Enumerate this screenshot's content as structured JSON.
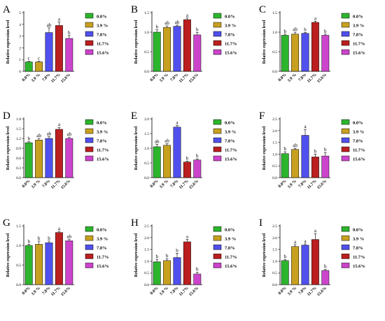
{
  "legend": [
    "0.0%",
    "3.9 %",
    "7.8%",
    "11.7%",
    "15.6%"
  ],
  "colors": {
    "g0": "#2db52d",
    "g1": "#c8a020",
    "g2": "#5050ee",
    "g3": "#bb1f1f",
    "g4": "#cc44cc"
  },
  "chart_data": [
    {
      "type": "bar",
      "panel_label": "A",
      "categories": [
        "0.0%",
        "3.9 %",
        "7.8%",
        "11.7%",
        "15.6%"
      ],
      "values": [
        0.8,
        0.8,
        3.3,
        3.9,
        2.8
      ],
      "errors": [
        0.05,
        0.05,
        0.4,
        0.3,
        0.25
      ],
      "letters": [
        "c",
        "c",
        "ab",
        "a",
        "b"
      ],
      "ylabel": "Relative expression level",
      "ylim": [
        0,
        5
      ],
      "yticks": [
        0,
        1,
        2,
        3,
        4,
        5
      ],
      "tick_labels": [
        "0",
        "1",
        "2",
        "3",
        "4",
        "5"
      ]
    },
    {
      "type": "bar",
      "panel_label": "B",
      "categories": [
        "0.0%",
        "3.9 %",
        "7.8%",
        "11.7%",
        "15.6%"
      ],
      "values": [
        1.0,
        1.12,
        1.15,
        1.32,
        0.93
      ],
      "errors": [
        0.06,
        0.04,
        0.03,
        0.04,
        0.06
      ],
      "letters": [
        "b",
        "ab",
        "ab",
        "a",
        "b"
      ],
      "ylabel": "Relative expression level",
      "ylim": [
        0,
        1.5
      ],
      "yticks": [
        0,
        0.5,
        1.0,
        1.5
      ],
      "tick_labels": [
        "0.0",
        "0.5",
        "1.0",
        "1.5"
      ]
    },
    {
      "type": "bar",
      "panel_label": "C",
      "categories": [
        "0.0%",
        "3.9 %",
        "7.8%",
        "11.7%",
        "15.6%"
      ],
      "values": [
        0.92,
        0.95,
        0.97,
        1.25,
        0.92
      ],
      "errors": [
        0.03,
        0.05,
        0.02,
        0.03,
        0.03
      ],
      "letters": [
        "b",
        "ab",
        "b",
        "a",
        "b"
      ],
      "ylabel": "Relative expression level",
      "ylim": [
        0,
        1.5
      ],
      "yticks": [
        0,
        0.5,
        1.0,
        1.5
      ],
      "tick_labels": [
        "0.0",
        "0.5",
        "1.0",
        "1.5"
      ]
    },
    {
      "type": "bar",
      "panel_label": "D",
      "categories": [
        "0.0%",
        "3.9 %",
        "7.8%",
        "11.7%",
        "15.6%"
      ],
      "values": [
        1.07,
        1.15,
        1.2,
        1.48,
        1.2
      ],
      "errors": [
        0.03,
        0.05,
        0.05,
        0.06,
        0.04
      ],
      "letters": [
        "b",
        "ab",
        "ab",
        "a",
        "ab"
      ],
      "ylabel": "Relative expression level",
      "ylim": [
        0,
        1.8
      ],
      "yticks": [
        0,
        0.3,
        0.6,
        0.9,
        1.2,
        1.5,
        1.8
      ],
      "tick_labels": [
        "0.0",
        "0.3",
        "0.6",
        "0.9",
        "1.2",
        "1.5",
        "1.8"
      ]
    },
    {
      "type": "bar",
      "panel_label": "E",
      "categories": [
        "0.0%",
        "3.9 %",
        "7.8%",
        "11.7%",
        "15.6%"
      ],
      "values": [
        1.05,
        1.1,
        1.72,
        0.53,
        0.6
      ],
      "errors": [
        0.08,
        0.05,
        0.05,
        0.03,
        0.04
      ],
      "letters": [
        "ab",
        "ab",
        "a",
        "b",
        "b"
      ],
      "ylabel": "Relative expression level",
      "ylim": [
        0,
        2.0
      ],
      "yticks": [
        0,
        0.5,
        1.0,
        1.5,
        2.0
      ],
      "tick_labels": [
        "0.0",
        "0.5",
        "1.0",
        "1.5",
        "2.0"
      ]
    },
    {
      "type": "bar",
      "panel_label": "F",
      "categories": [
        "0.0%",
        "3.9 %",
        "7.8%",
        "11.7%",
        "15.6%"
      ],
      "values": [
        1.02,
        1.2,
        1.8,
        0.88,
        0.92
      ],
      "errors": [
        0.08,
        0.05,
        0.25,
        0.12,
        0.15
      ],
      "letters": [
        "b",
        "ab",
        "a",
        "b",
        "b"
      ],
      "ylabel": "Relative expression level",
      "ylim": [
        0,
        2.5
      ],
      "yticks": [
        0,
        0.5,
        1.0,
        1.5,
        2.0,
        2.5
      ],
      "tick_labels": [
        "0.0",
        "0.5",
        "1.0",
        "1.5",
        "2.0",
        "2.5"
      ]
    },
    {
      "type": "bar",
      "panel_label": "G",
      "categories": [
        "0.0%",
        "3.9 %",
        "7.8%",
        "11.7%",
        "15.6%"
      ],
      "values": [
        1.0,
        1.03,
        1.07,
        1.33,
        1.12
      ],
      "errors": [
        0.03,
        0.08,
        0.04,
        0.03,
        0.03
      ],
      "letters": [
        "b",
        "b",
        "b",
        "a",
        "ab"
      ],
      "ylabel": "Relative expression level",
      "ylim": [
        0,
        1.5
      ],
      "yticks": [
        0,
        0.5,
        1.0,
        1.5
      ],
      "tick_labels": [
        "0.0",
        "0.5",
        "1.0",
        "1.5"
      ]
    },
    {
      "type": "bar",
      "panel_label": "H",
      "categories": [
        "0.0%",
        "3.9 %",
        "7.8%",
        "11.7%",
        "15.6%"
      ],
      "values": [
        0.97,
        1.02,
        1.15,
        1.82,
        0.45
      ],
      "errors": [
        0.1,
        0.08,
        0.18,
        0.1,
        0.08
      ],
      "letters": [
        "b",
        "b",
        "b",
        "a",
        "b"
      ],
      "ylabel": "Relative expression level",
      "ylim": [
        0,
        2.5
      ],
      "yticks": [
        0,
        0.5,
        1.0,
        1.5,
        2.0,
        2.5
      ],
      "tick_labels": [
        "0.0",
        "0.5",
        "1.0",
        "1.5",
        "2.0",
        "2.5"
      ]
    },
    {
      "type": "bar",
      "panel_label": "I",
      "categories": [
        "0.0%",
        "3.9 %",
        "7.8%",
        "11.7%",
        "15.6%"
      ],
      "values": [
        1.02,
        1.62,
        1.68,
        1.92,
        0.6
      ],
      "errors": [
        0.05,
        0.08,
        0.05,
        0.25,
        0.05
      ],
      "letters": [
        "b",
        "a",
        "a",
        "a",
        "b"
      ],
      "ylabel": "Relative expression level",
      "ylim": [
        0,
        2.5
      ],
      "yticks": [
        0,
        0.5,
        1.0,
        1.5,
        2.0,
        2.5
      ],
      "tick_labels": [
        "0.0",
        "0.5",
        "1.0",
        "1.5",
        "2.0",
        "2.5"
      ]
    }
  ]
}
